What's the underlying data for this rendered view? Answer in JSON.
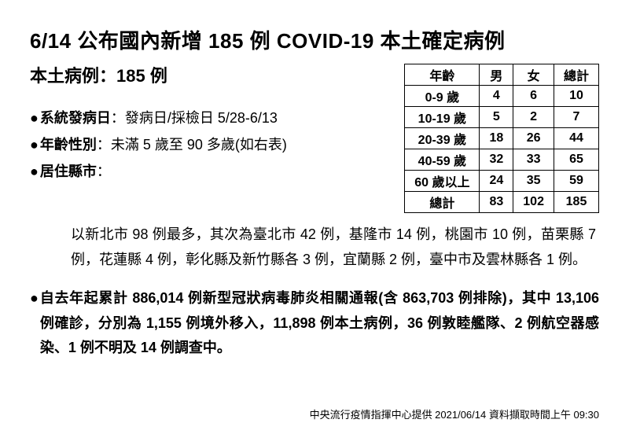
{
  "title": "6/14 公布國內新增 185 例 COVID-19 本土確定病例",
  "subtitle": "本土病例：185 例",
  "bullets": {
    "onset": {
      "label": "系統發病日",
      "value": "：發病日/採檢日 5/28-6/13"
    },
    "age": {
      "label": "年齡性別",
      "value": "：未滿 5 歲至 90 多歲(如右表)"
    },
    "county": {
      "label": "居住縣市",
      "value": "："
    }
  },
  "age_table": {
    "columns": [
      "年齡",
      "男",
      "女",
      "總計"
    ],
    "rows": [
      [
        "0-9 歲",
        "4",
        "6",
        "10"
      ],
      [
        "10-19 歲",
        "5",
        "2",
        "7"
      ],
      [
        "20-39 歲",
        "18",
        "26",
        "44"
      ],
      [
        "40-59 歲",
        "32",
        "33",
        "65"
      ],
      [
        "60 歲以上",
        "24",
        "35",
        "59"
      ],
      [
        "總計",
        "83",
        "102",
        "185"
      ]
    ],
    "border_color": "#000000",
    "font_size": 16
  },
  "county_text": "以新北市 98 例最多，其次為臺北市 42 例，基隆市 14 例，桃園市 10 例，苗栗縣 7 例，花蓮縣 4 例，彰化縣及新竹縣各 3 例，宜蘭縣 2 例，臺中市及雲林縣各 1 例。",
  "cumulative_text": "自去年起累計 886,014 例新型冠狀病毒肺炎相關通報(含 863,703 例排除)，其中 13,106 例確診，分別為 1,155 例境外移入，11,898 例本土病例，36 例敦睦艦隊、2 例航空器感染、1 例不明及 14 例調查中。",
  "footer": "中央流行疫情指揮中心提供  2021/06/14  資料擷取時間上午 09:30",
  "colors": {
    "text": "#000000",
    "background": "#ffffff"
  }
}
